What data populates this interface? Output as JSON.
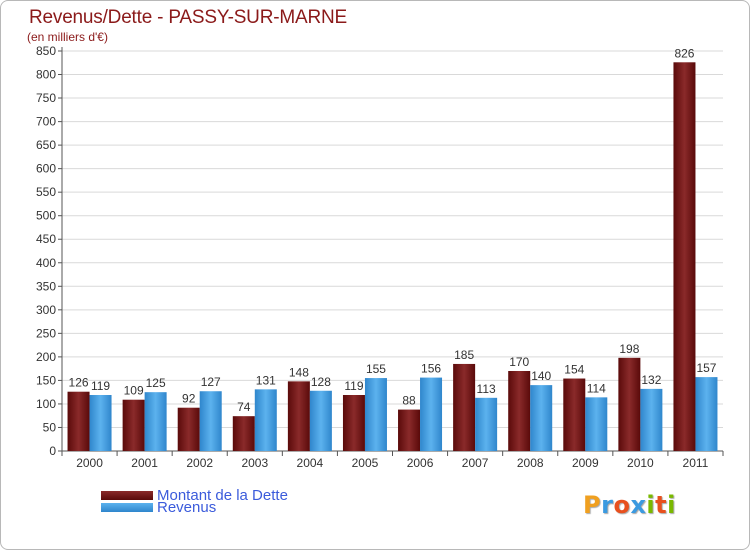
{
  "title": "Revenus/Dette - PASSY-SUR-MARNE",
  "unit_label": "(en milliers d'€)",
  "logo_text": "Proxiti",
  "legend": {
    "items": [
      {
        "label": "Montant de la Dette",
        "color": "#6b0d0d"
      },
      {
        "label": "Revenus",
        "color": "#3c9be0"
      }
    ]
  },
  "chart_data": {
    "type": "bar",
    "categories": [
      "2000",
      "2001",
      "2002",
      "2003",
      "2004",
      "2005",
      "2006",
      "2007",
      "2008",
      "2009",
      "2010",
      "2011"
    ],
    "series": [
      {
        "name": "Montant de la Dette",
        "color": "#6b0d0d",
        "values": [
          126,
          109,
          92,
          74,
          148,
          119,
          88,
          185,
          170,
          154,
          198,
          826
        ]
      },
      {
        "name": "Revenus",
        "color": "#3c9be0",
        "values": [
          119,
          125,
          127,
          131,
          128,
          155,
          156,
          113,
          140,
          114,
          132,
          157
        ]
      }
    ],
    "ylim": [
      0,
      850
    ],
    "yticks": [
      0,
      50,
      100,
      150,
      200,
      250,
      300,
      350,
      400,
      450,
      500,
      550,
      600,
      650,
      700,
      750,
      800,
      850
    ],
    "grid": true,
    "legend_position": "bottom-left",
    "xlabel": "",
    "ylabel": ""
  }
}
